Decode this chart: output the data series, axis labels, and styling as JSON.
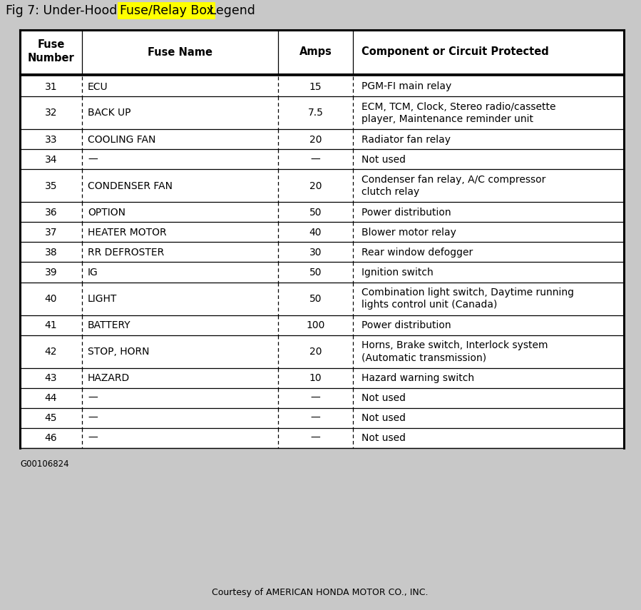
{
  "title_plain": "Fig 7: Under-Hood ",
  "title_highlight": "Fuse/Relay Box",
  "title_after": " Legend",
  "highlight_color": "#FFFF00",
  "bg_color": "#c8c8c8",
  "table_bg": "#ffffff",
  "border_color": "#000000",
  "footer_note": "G00106824",
  "footer_courtesy": "Courtesy of AMERICAN HONDA MOTOR CO., INC.",
  "rows": [
    {
      "num": "31",
      "name": "ECU",
      "amps": "15",
      "bold_name": false,
      "desc": "PGM-FI main relay",
      "multiline": false
    },
    {
      "num": "32",
      "name": "BACK UP",
      "amps": "7.5",
      "bold_name": false,
      "desc": "ECM, TCM, Clock, Stereo radio/cassette\nplayer, Maintenance reminder unit",
      "multiline": true
    },
    {
      "num": "33",
      "name": "COOLING FAN",
      "amps": "20",
      "bold_name": false,
      "desc": "Radiator fan relay",
      "multiline": false
    },
    {
      "num": "34",
      "name": "—",
      "amps": "—",
      "bold_name": false,
      "desc": "Not used",
      "multiline": false
    },
    {
      "num": "35",
      "name": "CONDENSER FAN",
      "amps": "20",
      "bold_name": false,
      "desc": "Condenser fan relay, A/C compressor\nclutch relay",
      "multiline": true
    },
    {
      "num": "36",
      "name": "OPTION",
      "amps": "50",
      "bold_name": false,
      "desc": "Power distribution",
      "multiline": false
    },
    {
      "num": "37",
      "name": "HEATER MOTOR",
      "amps": "40",
      "bold_name": false,
      "desc": "Blower motor relay",
      "multiline": false
    },
    {
      "num": "38",
      "name": "RR DEFROSTER",
      "amps": "30",
      "bold_name": false,
      "desc": "Rear window defogger",
      "multiline": false
    },
    {
      "num": "39",
      "name": "IG",
      "amps": "50",
      "bold_name": false,
      "desc": "Ignition switch",
      "multiline": false
    },
    {
      "num": "40",
      "name": "LIGHT",
      "amps": "50",
      "bold_name": false,
      "desc": "Combination light switch, Daytime running\nlights control unit (Canada)",
      "multiline": true
    },
    {
      "num": "41",
      "name": "BATTERY",
      "amps": "100",
      "bold_name": false,
      "desc": "Power distribution",
      "multiline": false
    },
    {
      "num": "42",
      "name": "STOP, HORN",
      "amps": "20",
      "bold_name": false,
      "desc": "Horns, Brake switch, Interlock system\n(Automatic transmission)",
      "multiline": true
    },
    {
      "num": "43",
      "name": "HAZARD",
      "amps": "10",
      "bold_name": false,
      "desc": "Hazard warning switch",
      "multiline": false
    },
    {
      "num": "44",
      "name": "—",
      "amps": "—",
      "bold_name": false,
      "desc": "Not used",
      "multiline": false
    },
    {
      "num": "45",
      "name": "—",
      "amps": "—",
      "bold_name": false,
      "desc": "Not used",
      "multiline": false
    },
    {
      "num": "46",
      "name": "—",
      "amps": "—",
      "bold_name": false,
      "desc": "Not used",
      "multiline": false
    }
  ]
}
